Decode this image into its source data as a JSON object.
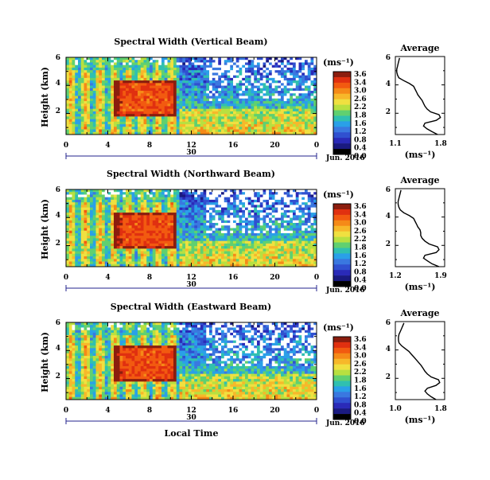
{
  "xlabel": "Local Time",
  "month_label": "Jun. 2016",
  "day_label": "30",
  "colorbar_unit": "(ms⁻¹)",
  "colorbar_ticks": [
    "3.6",
    "3.4",
    "3.0",
    "2.6",
    "2.2",
    "1.8",
    "1.6",
    "1.2",
    "0.8",
    "0.4",
    "0.0"
  ],
  "colorbar_colors": [
    "#8b1d0e",
    "#e03010",
    "#f25a10",
    "#f58a18",
    "#f7b82a",
    "#f0e040",
    "#b8e040",
    "#60d070",
    "#30c0b0",
    "#2aa0e8",
    "#3a78e0",
    "#3050d0",
    "#2a2ab8",
    "#1a1a80",
    "#000000"
  ],
  "average_title": "Average",
  "average_unit": "(ms⁻¹)",
  "chart_data": [
    {
      "type": "heatmap",
      "title": "Spectral Width (Vertical Beam)",
      "ylabel": "Height (km)",
      "x_ticks": [
        "0",
        "4",
        "8",
        "12",
        "16",
        "20",
        "0"
      ],
      "y_ticks": [
        "6",
        "4",
        "2"
      ],
      "xlim": [
        0,
        24
      ],
      "ylim": [
        0.5,
        6
      ],
      "avg_profile": {
        "x_ticks": [
          "1.1",
          "1.8"
        ],
        "xlim": [
          1.1,
          1.8
        ],
        "y_ticks": [
          "6",
          "4",
          "2"
        ],
        "ylim": [
          0.5,
          6
        ],
        "height": [
          0.5,
          0.7,
          0.9,
          1.1,
          1.3,
          1.5,
          1.7,
          1.9,
          2.1,
          2.3,
          2.5,
          2.7,
          2.9,
          3.1,
          3.3,
          3.5,
          3.7,
          3.9,
          4.1,
          4.3,
          4.5,
          4.7,
          4.9,
          5.1,
          5.3,
          5.5,
          5.7,
          5.9
        ],
        "value": [
          1.7,
          1.62,
          1.55,
          1.5,
          1.52,
          1.68,
          1.74,
          1.72,
          1.6,
          1.55,
          1.52,
          1.5,
          1.48,
          1.45,
          1.42,
          1.4,
          1.38,
          1.36,
          1.3,
          1.22,
          1.15,
          1.13,
          1.12,
          1.12,
          1.13,
          1.14,
          1.15,
          1.16
        ]
      }
    },
    {
      "type": "heatmap",
      "title": "Spectral Width (Northward Beam)",
      "ylabel": "Height (km)",
      "x_ticks": [
        "0",
        "4",
        "8",
        "12",
        "16",
        "20",
        "0"
      ],
      "y_ticks": [
        "6",
        "4",
        "2"
      ],
      "xlim": [
        0,
        24
      ],
      "ylim": [
        0.5,
        6
      ],
      "avg_profile": {
        "x_ticks": [
          "1.2",
          "1.9"
        ],
        "xlim": [
          1.2,
          1.9
        ],
        "y_ticks": [
          "6",
          "4",
          "2"
        ],
        "ylim": [
          0.5,
          6
        ],
        "height": [
          0.5,
          0.7,
          0.9,
          1.1,
          1.3,
          1.5,
          1.7,
          1.9,
          2.1,
          2.3,
          2.5,
          2.7,
          2.9,
          3.1,
          3.3,
          3.5,
          3.7,
          3.9,
          4.1,
          4.3,
          4.5,
          4.7,
          4.9,
          5.1,
          5.3,
          5.5,
          5.7,
          5.9
        ],
        "value": [
          1.82,
          1.72,
          1.66,
          1.6,
          1.62,
          1.78,
          1.82,
          1.8,
          1.68,
          1.62,
          1.58,
          1.56,
          1.56,
          1.55,
          1.52,
          1.5,
          1.48,
          1.46,
          1.4,
          1.32,
          1.27,
          1.25,
          1.24,
          1.24,
          1.25,
          1.26,
          1.27,
          1.28
        ]
      }
    },
    {
      "type": "heatmap",
      "title": "Spectral Width (Eastward Beam)",
      "ylabel": "Height (km)",
      "x_ticks": [
        "0",
        "4",
        "8",
        "12",
        "16",
        "20",
        "0"
      ],
      "y_ticks": [
        "6",
        "4",
        "2"
      ],
      "xlim": [
        0,
        24
      ],
      "ylim": [
        0.5,
        6
      ],
      "avg_profile": {
        "x_ticks": [
          "1.0",
          "1.8"
        ],
        "xlim": [
          1.0,
          1.8
        ],
        "y_ticks": [
          "6",
          "4",
          "2"
        ],
        "ylim": [
          0.5,
          6
        ],
        "height": [
          0.5,
          0.7,
          0.9,
          1.1,
          1.3,
          1.5,
          1.7,
          1.9,
          2.1,
          2.3,
          2.5,
          2.7,
          2.9,
          3.1,
          3.3,
          3.5,
          3.7,
          3.9,
          4.1,
          4.3,
          4.5,
          4.7,
          4.9,
          5.1,
          5.3,
          5.5,
          5.7,
          5.9
        ],
        "value": [
          1.66,
          1.58,
          1.52,
          1.48,
          1.52,
          1.66,
          1.72,
          1.7,
          1.58,
          1.52,
          1.48,
          1.45,
          1.42,
          1.38,
          1.34,
          1.3,
          1.26,
          1.22,
          1.16,
          1.1,
          1.06,
          1.05,
          1.05,
          1.06,
          1.08,
          1.1,
          1.12,
          1.14
        ]
      }
    }
  ]
}
